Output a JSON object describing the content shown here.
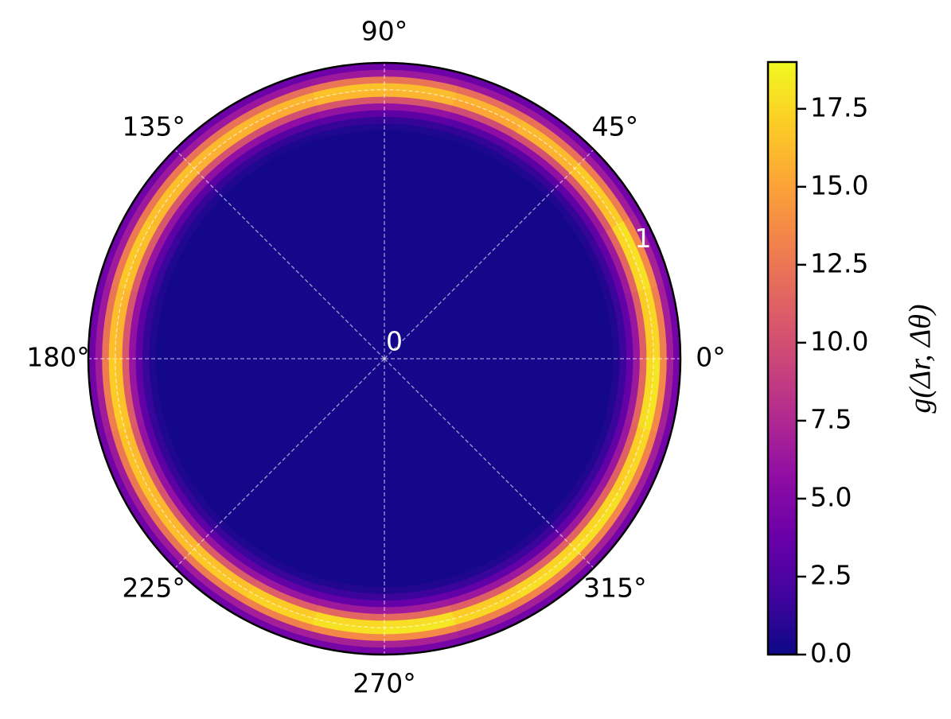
{
  "chart_data": {
    "type": "polar_heatmap",
    "colormap": "plasma",
    "colorbar_label": "g(Δr, Δθ)",
    "rlim": [
      0,
      1.1
    ],
    "rticks": [
      0,
      1
    ],
    "theta_ticks": [
      {
        "value": 0,
        "label": "0°"
      },
      {
        "value": 45,
        "label": "45°"
      },
      {
        "value": 90,
        "label": "90°"
      },
      {
        "value": 135,
        "label": "135°"
      },
      {
        "value": 180,
        "label": "180°"
      },
      {
        "value": 225,
        "label": "225°"
      },
      {
        "value": 270,
        "label": "270°"
      },
      {
        "value": 315,
        "label": "315°"
      }
    ],
    "grid": true,
    "r_bins": [
      0,
      0.85,
      0.875,
      0.9,
      0.925,
      0.95,
      0.975,
      1.0,
      1.025,
      1.05,
      1.075,
      1.1
    ],
    "theta_bins": [
      0,
      15,
      30,
      45,
      60,
      75,
      90,
      105,
      120,
      135,
      150,
      165,
      180,
      195,
      210,
      225,
      240,
      255,
      270,
      285,
      300,
      315,
      330,
      345,
      360
    ],
    "values": [
      [
        0.3,
        0.7,
        1.6,
        3.4,
        6.2,
        11,
        17,
        17.5,
        13,
        6.8,
        4.2
      ],
      [
        0.3,
        0.8,
        1.7,
        3.5,
        6.5,
        11.5,
        17.5,
        18,
        13.5,
        7,
        4.4
      ],
      [
        0.3,
        0.7,
        1.5,
        3.3,
        6.1,
        10.8,
        16.5,
        17,
        12.8,
        6.6,
        4.1
      ],
      [
        0.3,
        0.7,
        1.5,
        3.1,
        5.8,
        10.2,
        15.8,
        16.2,
        12.2,
        6.4,
        4
      ],
      [
        0.3,
        0.6,
        1.4,
        3,
        5.6,
        9.8,
        15.2,
        15.8,
        12,
        6.2,
        3.9
      ],
      [
        0.3,
        0.7,
        1.5,
        3.2,
        5.9,
        10.3,
        15.9,
        16.3,
        12.4,
        6.4,
        4
      ],
      [
        0.3,
        0.7,
        1.5,
        3.2,
        6,
        10.5,
        16,
        16.6,
        12.5,
        6.5,
        4.1
      ],
      [
        0.3,
        0.6,
        1.4,
        3,
        5.7,
        10,
        15.5,
        16,
        12.1,
        6.3,
        3.9
      ],
      [
        0.3,
        0.7,
        1.5,
        3.1,
        5.8,
        10.2,
        15.7,
        16.1,
        12.3,
        6.4,
        4
      ],
      [
        0.3,
        0.7,
        1.5,
        3.2,
        6,
        10.6,
        16.1,
        16.5,
        12.6,
        6.5,
        4.1
      ],
      [
        0.3,
        0.7,
        1.6,
        3.3,
        6.1,
        10.8,
        16.4,
        16.8,
        12.7,
        6.6,
        4.1
      ],
      [
        0.3,
        0.7,
        1.5,
        3.2,
        5.9,
        10.4,
        15.9,
        16.4,
        12.4,
        6.4,
        4
      ],
      [
        0.3,
        0.7,
        1.6,
        3.3,
        6.2,
        10.9,
        16.6,
        17,
        12.9,
        6.7,
        4.2
      ],
      [
        0.3,
        0.7,
        1.5,
        3.2,
        6,
        10.6,
        16.2,
        16.6,
        12.6,
        6.5,
        4.1
      ],
      [
        0.3,
        0.7,
        1.5,
        3.2,
        5.9,
        10.4,
        16,
        16.4,
        12.4,
        6.4,
        4
      ],
      [
        0.3,
        0.7,
        1.6,
        3.3,
        6.1,
        10.8,
        16.5,
        16.9,
        12.8,
        6.6,
        4.1
      ],
      [
        0.3,
        0.7,
        1.6,
        3.4,
        6.3,
        11.1,
        16.9,
        17.3,
        13.1,
        6.8,
        4.2
      ],
      [
        0.3,
        0.8,
        1.7,
        3.5,
        6.5,
        11.5,
        17.6,
        18,
        13.5,
        7,
        4.4
      ],
      [
        0.3,
        0.8,
        1.7,
        3.6,
        6.6,
        11.7,
        17.8,
        18.2,
        13.6,
        7.1,
        4.4
      ],
      [
        0.3,
        0.7,
        1.6,
        3.4,
        6.3,
        11.1,
        17,
        17.4,
        13.1,
        6.8,
        4.2
      ],
      [
        0.3,
        0.8,
        1.7,
        3.5,
        6.4,
        11.3,
        17.3,
        17.8,
        13.3,
        6.9,
        4.3
      ],
      [
        0.3,
        0.8,
        1.7,
        3.5,
        6.5,
        11.4,
        17.4,
        17.9,
        13.4,
        7,
        4.3
      ],
      [
        0.3,
        0.7,
        1.6,
        3.4,
        6.3,
        11.2,
        17.1,
        17.5,
        13.2,
        6.8,
        4.2
      ],
      [
        0.3,
        0.8,
        1.7,
        3.5,
        6.5,
        11.6,
        17.7,
        18.1,
        13.5,
        7,
        4.4
      ]
    ],
    "clim": [
      0,
      19
    ],
    "cticks": [
      {
        "value": 0,
        "label": "0.0"
      },
      2.5,
      {
        "value": 5,
        "label": "5.0"
      },
      7.5,
      {
        "value": 10,
        "label": "10.0"
      },
      12.5,
      {
        "value": 15,
        "label": "15.0"
      },
      17.5
    ]
  }
}
